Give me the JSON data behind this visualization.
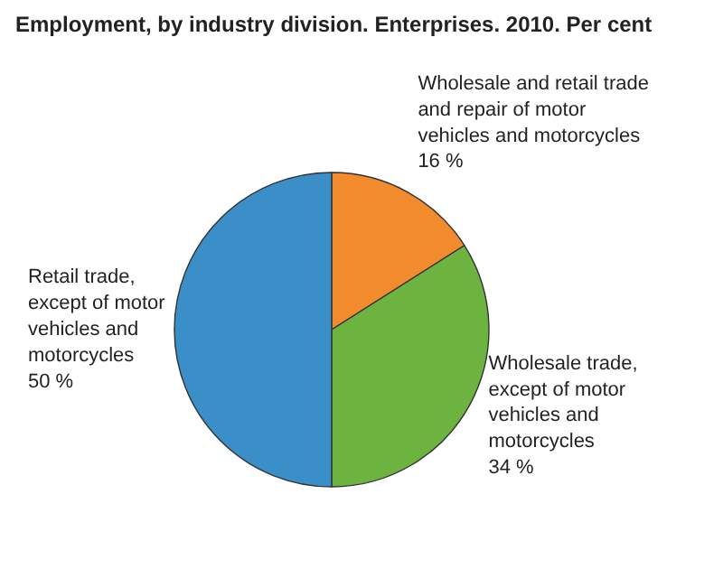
{
  "chart_data": {
    "type": "pie",
    "title": "Employment, by industry division. Enterprises. 2010. Per  cent",
    "categories": [
      "Wholesale and retail trade and repair of motor vehicles and motorcycles",
      "Wholesale trade, except of motor vehicles and motorcycles",
      "Retail trade, except of motor vehicles and motorcycles"
    ],
    "values": [
      16,
      34,
      50
    ],
    "value_labels": [
      "16 %",
      "34 %",
      "50 %"
    ],
    "colors": [
      "#f28a2e",
      "#6db33f",
      "#3a8fc8"
    ]
  }
}
